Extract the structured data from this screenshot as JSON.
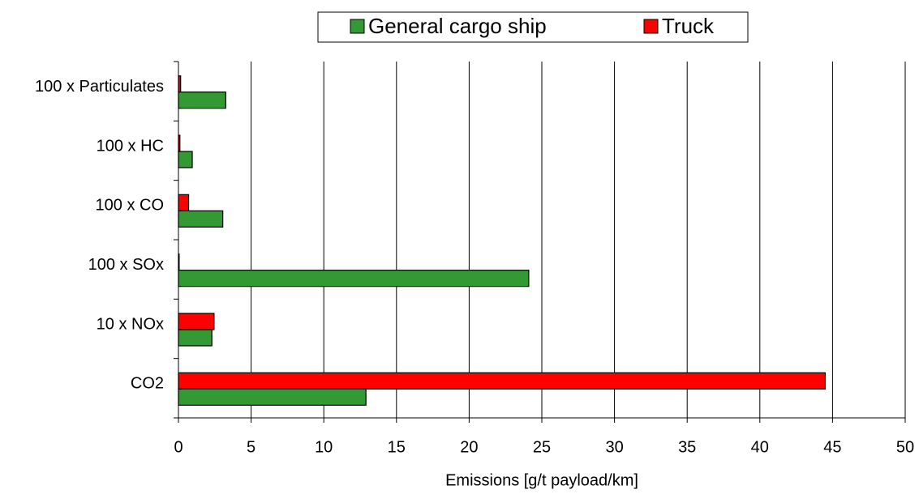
{
  "chart_data": {
    "type": "bar",
    "orientation": "horizontal",
    "categories": [
      "100 x Particulates",
      "100 x HC",
      "100 x CO",
      "100 x SOx",
      "10 x NOx",
      "CO2"
    ],
    "series": [
      {
        "name": "General cargo ship",
        "color": "#339933",
        "values": [
          3.25,
          0.95,
          3.05,
          24.1,
          2.3,
          12.9
        ]
      },
      {
        "name": "Truck",
        "color": "#ff0000",
        "values": [
          0.15,
          0.1,
          0.7,
          0.05,
          2.45,
          44.5
        ]
      }
    ],
    "xlabel": "Emissions [g/t payload/km]",
    "xlim": [
      0,
      50
    ],
    "xticks": [
      0,
      5,
      10,
      15,
      20,
      25,
      30,
      35,
      40,
      45,
      50
    ],
    "grid": true,
    "legend": "top"
  }
}
